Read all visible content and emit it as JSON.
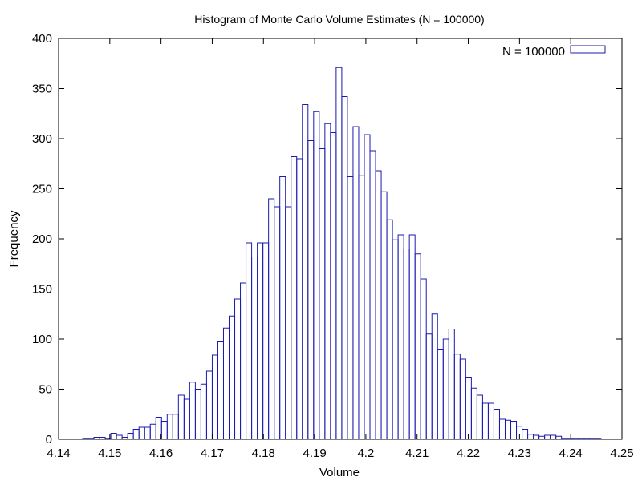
{
  "chart_data": {
    "type": "bar",
    "title": "Histogram of Monte Carlo Volume Estimates (N = 100000)",
    "xlabel": "Volume",
    "ylabel": "Frequency",
    "xlim": [
      4.14,
      4.25
    ],
    "ylim": [
      0,
      400
    ],
    "xticks": [
      "4.14",
      "4.15",
      "4.16",
      "4.17",
      "4.18",
      "4.19",
      "4.2",
      "4.21",
      "4.22",
      "4.23",
      "4.24",
      "4.25"
    ],
    "yticks": [
      "0",
      "50",
      "100",
      "150",
      "200",
      "250",
      "300",
      "350",
      "400"
    ],
    "grid": false,
    "legend_position": "top-right",
    "bar_color": "#1a1ab0",
    "bin_width": 0.0011,
    "series": [
      {
        "name": "N = 100000",
        "bin_starts": [
          4.1447,
          4.1458,
          4.1469,
          4.148,
          4.1491,
          4.1502,
          4.1513,
          4.1524,
          4.1535,
          4.1546,
          4.1557,
          4.1568,
          4.1579,
          4.159,
          4.1601,
          4.1612,
          4.1623,
          4.1634,
          4.1645,
          4.1656,
          4.1667,
          4.1678,
          4.1689,
          4.17,
          4.1711,
          4.1722,
          4.1733,
          4.1744,
          4.1755,
          4.1766,
          4.1777,
          4.1788,
          4.1799,
          4.181,
          4.1821,
          4.1832,
          4.1843,
          4.1854,
          4.1865,
          4.1876,
          4.1887,
          4.1898,
          4.1909,
          4.192,
          4.1931,
          4.1942,
          4.1953,
          4.1964,
          4.1975,
          4.1986,
          4.1997,
          4.2008,
          4.2019,
          4.203,
          4.2041,
          4.2052,
          4.2063,
          4.2074,
          4.2085,
          4.2096,
          4.2107,
          4.2118,
          4.2129,
          4.214,
          4.2151,
          4.2162,
          4.2173,
          4.2184,
          4.2195,
          4.2206,
          4.2217,
          4.2228,
          4.2239,
          4.225,
          4.2261,
          4.2272,
          4.2283,
          4.2294,
          4.2305,
          4.2316,
          4.2327,
          4.2338,
          4.2349,
          4.236,
          4.2371,
          4.2382,
          4.2393,
          4.2404,
          4.2415,
          4.2426,
          4.2437,
          4.2448
        ],
        "values": [
          1,
          1,
          2,
          2,
          1,
          6,
          4,
          2,
          6,
          10,
          12,
          12,
          15,
          22,
          18,
          25,
          25,
          44,
          40,
          57,
          50,
          55,
          68,
          84,
          98,
          111,
          123,
          140,
          156,
          196,
          182,
          196,
          196,
          240,
          232,
          262,
          232,
          282,
          280,
          334,
          298,
          327,
          290,
          315,
          306,
          371,
          342,
          262,
          312,
          263,
          304,
          288,
          268,
          247,
          219,
          199,
          204,
          190,
          204,
          185,
          160,
          105,
          125,
          90,
          100,
          110,
          85,
          80,
          62,
          51,
          44,
          36,
          36,
          30,
          20,
          19,
          18,
          13,
          10,
          5,
          4,
          3,
          4,
          4,
          3,
          1,
          1,
          1,
          1,
          1,
          1,
          1
        ]
      }
    ]
  }
}
